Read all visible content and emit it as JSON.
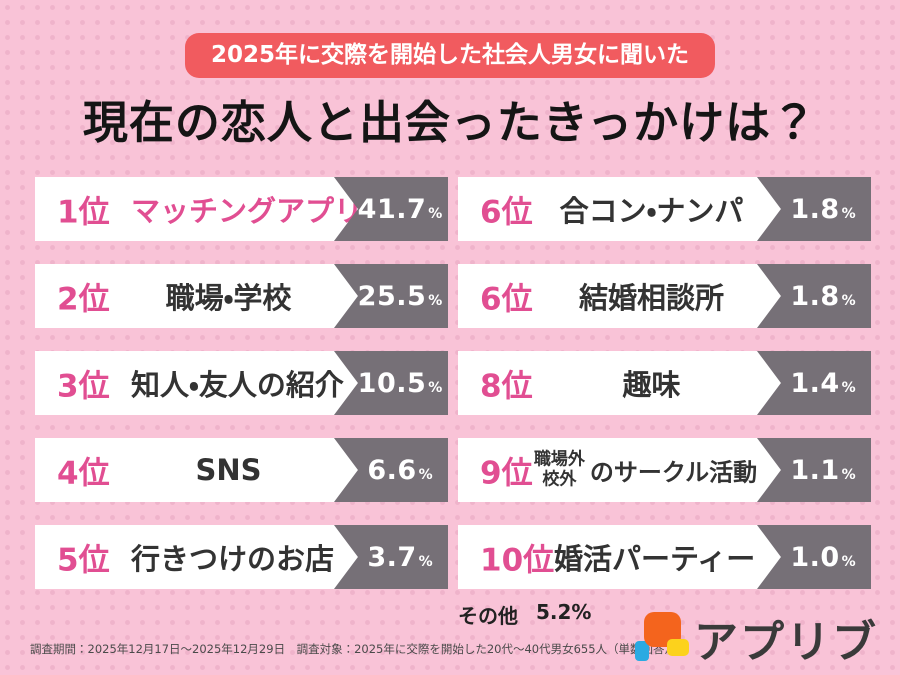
{
  "page": {
    "badge": "2025年に交際を開始した社会人男女に聞いた",
    "title": "現在の恋人と出会ったきっかけは？"
  },
  "ranking": {
    "left": [
      {
        "rank": "1位",
        "label": "マッチングアプリ",
        "value": "41.7",
        "unit": "%"
      },
      {
        "rank": "2位",
        "label": "職場・学校",
        "value": "25.5",
        "unit": "%"
      },
      {
        "rank": "3位",
        "label": "知人・友人の紹介",
        "value": "10.5",
        "unit": "%"
      },
      {
        "rank": "4位",
        "label": "SNS",
        "value": "6.6",
        "unit": "%"
      },
      {
        "rank": "5位",
        "label": "行きつけのお店",
        "value": "3.7",
        "unit": "%"
      }
    ],
    "right": [
      {
        "rank": "6位",
        "label": "合コン・ナンパ",
        "value": "1.8",
        "unit": "%"
      },
      {
        "rank": "6位",
        "label": "結婚相談所",
        "value": "1.8",
        "unit": "%"
      },
      {
        "rank": "8位",
        "label": "趣味",
        "value": "1.4",
        "unit": "%"
      },
      {
        "rank": "9位",
        "label_stack_top": "職場外",
        "label_stack_bottom": "校外",
        "label": "のサークル活動",
        "value": "1.1",
        "unit": "%"
      },
      {
        "rank": "10位",
        "label": "婚活パーティー",
        "value": "1.0",
        "unit": "%"
      }
    ]
  },
  "other": {
    "label": "その他",
    "value": "5.2%"
  },
  "footer": {
    "note": "調査期間：2025年12月17日〜2025年12月29日　調査対象：2025年に交際を開始した20代〜40代男女655人（単数回答）"
  },
  "logo": {
    "text": "アプリブ"
  },
  "colors": {
    "background": "#f9c3d7",
    "badge": "#f15b5f",
    "accent_pink": "#e14e92",
    "bar_gray": "#767077",
    "bar_white": "#ffffff",
    "logo_orange": "#f4641d",
    "logo_yellow": "#fcd21c",
    "logo_blue": "#2aaae2"
  },
  "chart_data": {
    "type": "bar",
    "title": "現在の恋人と出会ったきっかけは？",
    "subtitle": "2025年に交際を開始した社会人男女に聞いた",
    "categories": [
      "マッチングアプリ",
      "職場・学校",
      "知人・友人の紹介",
      "SNS",
      "行きつけのお店",
      "合コン・ナンパ",
      "結婚相談所",
      "趣味",
      "職場外・校外のサークル活動",
      "婚活パーティー",
      "その他"
    ],
    "values": [
      41.7,
      25.5,
      10.5,
      6.6,
      3.7,
      1.8,
      1.8,
      1.4,
      1.1,
      1.0,
      5.2
    ],
    "ranks": [
      1,
      2,
      3,
      4,
      5,
      6,
      6,
      8,
      9,
      10,
      null
    ],
    "unit": "%",
    "legend": "none",
    "layout": "two-column ranking list, ranks 1-5 left, 6-10 right",
    "source_note": "調査期間：2025年12月17日〜2025年12月29日　調査対象：2025年に交際を開始した20代〜40代男女655人（単数回答）"
  }
}
